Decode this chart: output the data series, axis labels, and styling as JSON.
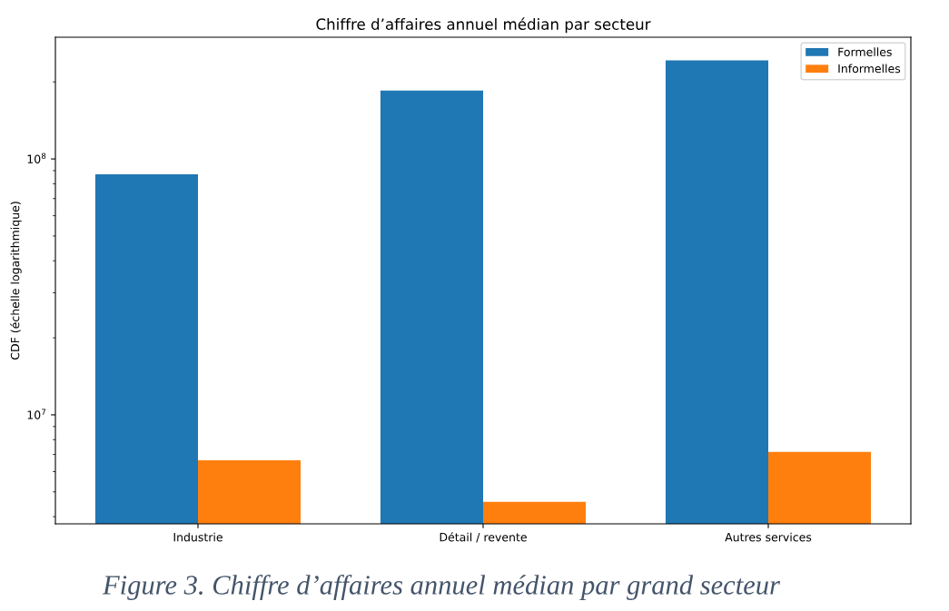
{
  "chart_data": {
    "type": "bar",
    "title": "Chiffre d’affaires annuel médian par secteur",
    "ylabel": "CDF (échelle logarithmique)",
    "categories": [
      "Industrie",
      "Détail / revente",
      "Autres services"
    ],
    "series": [
      {
        "name": "Formelles",
        "color": "#1f77b4",
        "values": [
          87000000,
          185000000,
          243000000
        ]
      },
      {
        "name": "Informelles",
        "color": "#ff7f0e",
        "values": [
          6650000,
          4570000,
          7160000
        ]
      }
    ],
    "log": true,
    "ylim": [
      3750000,
      299000000
    ],
    "yticks": [
      {
        "value": 10000000,
        "label": "10$^{7}$"
      },
      {
        "value": 100000000,
        "label": "10$^{8}$"
      },
      {
        "value": 4000000,
        "label": null
      },
      {
        "value": 5000000,
        "label": null
      },
      {
        "value": 6000000,
        "label": null
      },
      {
        "value": 7000000,
        "label": null
      },
      {
        "value": 8000000,
        "label": null
      },
      {
        "value": 9000000,
        "label": null
      },
      {
        "value": 20000000,
        "label": null
      },
      {
        "value": 30000000,
        "label": null
      },
      {
        "value": 40000000,
        "label": null
      },
      {
        "value": 50000000,
        "label": null
      },
      {
        "value": 60000000,
        "label": null
      },
      {
        "value": 70000000,
        "label": null
      },
      {
        "value": 80000000,
        "label": null
      },
      {
        "value": 90000000,
        "label": null
      },
      {
        "value": 200000000,
        "label": null
      }
    ],
    "grid": false,
    "legend": "top right",
    "annotations": [
      "Figure 3. Chiffre d’affaires annuel médian par grand secteur"
    ]
  }
}
